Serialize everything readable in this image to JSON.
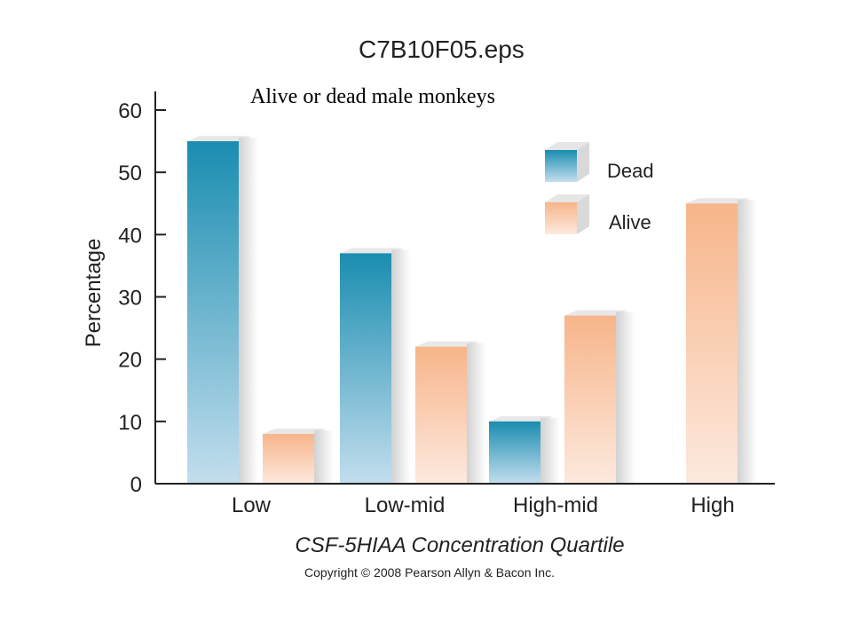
{
  "file_label": "C7B10F05.eps",
  "subtitle": "Alive or dead male monkeys",
  "copyright": "Copyright © 2008 Pearson Allyn & Bacon Inc.",
  "colors": {
    "dead": "#1a8db0",
    "alive": "#f7b58a"
  },
  "chart_data": {
    "type": "bar",
    "title": "Alive or dead male monkeys",
    "xlabel": "CSF-5HIAA Concentration Quartile",
    "ylabel": "Percentage",
    "ylim": [
      0,
      60
    ],
    "yticks": [
      "0",
      "10",
      "20",
      "30",
      "40",
      "50",
      "60"
    ],
    "categories": [
      "Low",
      "Low-mid",
      "High-mid",
      "High"
    ],
    "legend_position": "top-right",
    "series": [
      {
        "name": "Dead",
        "values": [
          55,
          37,
          10,
          0
        ]
      },
      {
        "name": "Alive",
        "values": [
          8,
          22,
          27,
          45
        ]
      }
    ]
  }
}
